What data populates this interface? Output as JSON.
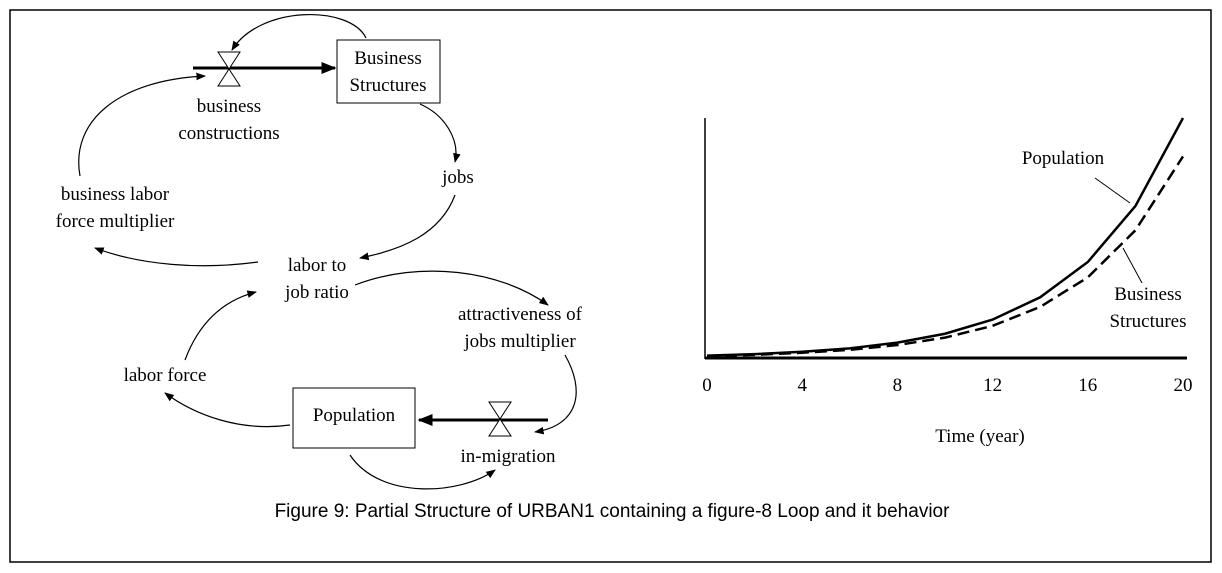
{
  "diagram": {
    "nodes": [
      {
        "label": [
          "Business",
          "Structures"
        ]
      },
      {
        "label": [
          "business",
          "constructions"
        ]
      },
      {
        "label": [
          "jobs"
        ]
      },
      {
        "label": [
          "business labor",
          "force multiplier"
        ]
      },
      {
        "label": [
          "labor to",
          "job ratio"
        ]
      },
      {
        "label": [
          "attractiveness of",
          "jobs multiplier"
        ]
      },
      {
        "label": [
          "labor force"
        ]
      },
      {
        "label": [
          "Population"
        ]
      },
      {
        "label": [
          "in-migration"
        ]
      }
    ]
  },
  "chart_data": {
    "type": "line",
    "xlabel": "Time (year)",
    "x": [
      0,
      2,
      4,
      6,
      8,
      10,
      12,
      14,
      16,
      18,
      20
    ],
    "xlim": [
      0,
      20
    ],
    "xticks": [
      0,
      4,
      8,
      12,
      16,
      20
    ],
    "ylim": [
      0,
      100
    ],
    "series": [
      {
        "name": "Population",
        "color": "#000000",
        "dashed": false,
        "values": [
          1.0,
          1.6,
          2.6,
          4.0,
          6.4,
          10.1,
          16.0,
          25.3,
          40.0,
          63.3,
          100
        ]
      },
      {
        "name": "Business Structures",
        "color": "#000000",
        "dashed": true,
        "values": [
          0.8,
          1.3,
          2.2,
          3.4,
          5.4,
          8.5,
          13.4,
          21.3,
          33.6,
          53.2,
          84
        ]
      }
    ]
  },
  "caption": "Figure 9: Partial Structure of URBAN1 containing a figure-8 Loop and it behavior"
}
